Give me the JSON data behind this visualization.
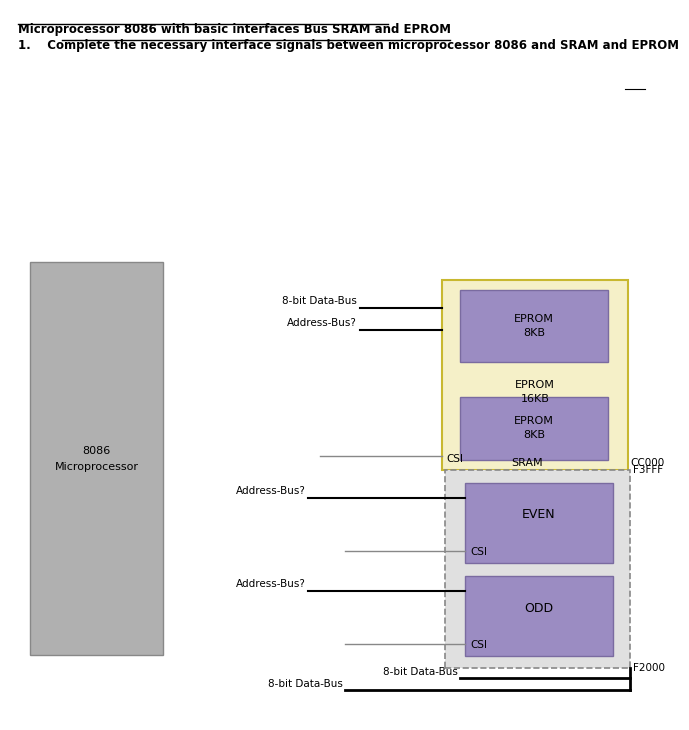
{
  "title_line1": "Microprocessor 8086 with basic interfaces Bus SRAM and EPROM",
  "title_line2": "1.    Complete the necessary interface signals between microprocessor 8086 and SRAM and EPROM",
  "bg_color": "#ffffff",
  "cpu_color": "#b0b0b0",
  "cpu_edge_color": "#888888",
  "eprom_outer_color": "#f5f0c8",
  "eprom_outer_edge": "#c8b830",
  "eprom_chip_color": "#9b8cc2",
  "eprom_chip_edge": "#7a6ba0",
  "sram_outer_color": "#e0e0e0",
  "sram_outer_edge": "#888888",
  "purple_color": "#9b8cc2",
  "gray_color": "#b0b0b0",
  "line_color": "#888888",
  "black": "#000000"
}
